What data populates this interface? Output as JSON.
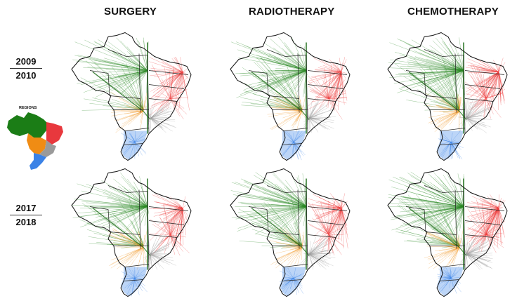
{
  "columns": [
    "SURGERY",
    "RADIOTHERAPY",
    "CHEMOTHERAPY"
  ],
  "periods": [
    {
      "start": "2009",
      "end": "2010"
    },
    {
      "start": "2017",
      "end": "2018"
    }
  ],
  "legend": {
    "title": "REGIONS",
    "colors": {
      "north": "#1b7d16",
      "northeast": "#e8383d",
      "central_west": "#f08c14",
      "southeast": "#9a9a9a",
      "south": "#3b82e6"
    }
  },
  "flow_colors": {
    "north": "#2a8a24",
    "northeast": "#ee3a3a",
    "central_west": "#f29a2a",
    "southeast": "#9c9c9c",
    "south": "#3f86e8"
  }
}
